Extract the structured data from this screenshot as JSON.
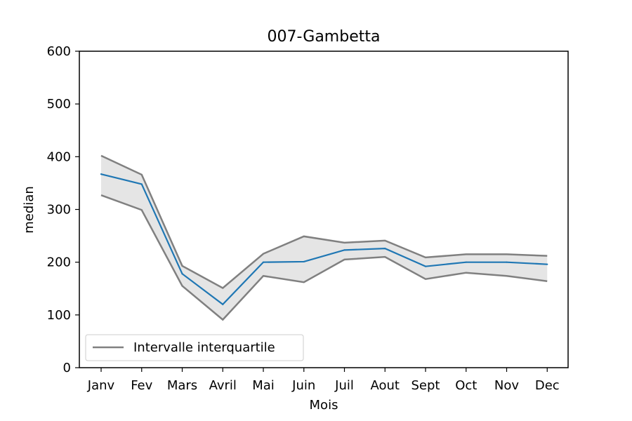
{
  "chart_data": {
    "type": "line",
    "title": "007-Gambetta",
    "xlabel": "Mois",
    "ylabel": "median",
    "categories": [
      "Janv",
      "Fev",
      "Mars",
      "Avril",
      "Mai",
      "Juin",
      "Juil",
      "Aout",
      "Sept",
      "Oct",
      "Nov",
      "Dec"
    ],
    "ylim": [
      0,
      600
    ],
    "yticks": [
      0,
      100,
      200,
      300,
      400,
      500,
      600
    ],
    "series": [
      {
        "values": [
          367,
          348,
          178,
          120,
          200,
          201,
          223,
          226,
          192,
          200,
          200,
          196
        ],
        "color": "#1f77b4"
      }
    ],
    "band": {
      "name": "Intervalle interquartile",
      "upper": [
        402,
        366,
        193,
        151,
        216,
        249,
        237,
        241,
        209,
        215,
        215,
        212
      ],
      "lower": [
        327,
        299,
        155,
        91,
        174,
        162,
        205,
        210,
        168,
        180,
        174,
        164
      ],
      "line_color": "#808080",
      "fill_color": "#e5e5e5"
    },
    "grid": false,
    "legend_position": "lower-left"
  }
}
